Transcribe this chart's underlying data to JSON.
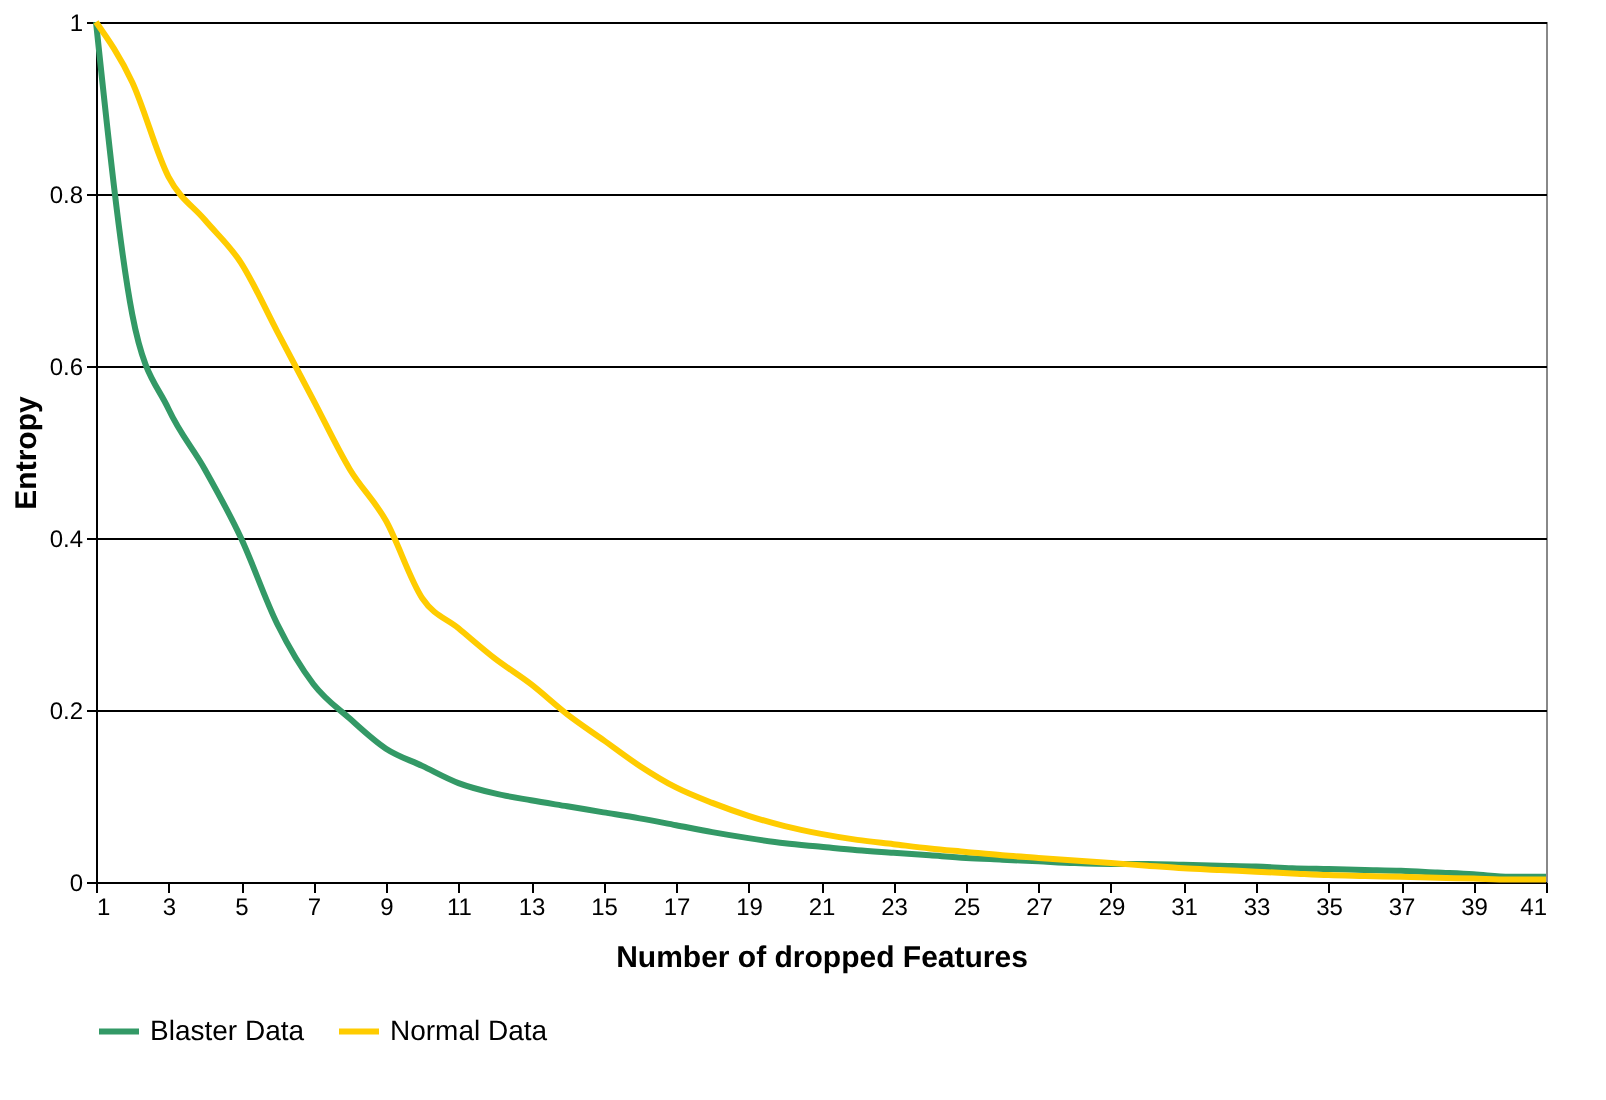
{
  "chart_data": {
    "type": "line",
    "xlabel": "Number of dropped Features",
    "ylabel": "Entropy",
    "x": [
      1,
      2,
      3,
      4,
      5,
      6,
      7,
      8,
      9,
      10,
      11,
      12,
      13,
      14,
      15,
      16,
      17,
      18,
      19,
      20,
      21,
      22,
      23,
      24,
      25,
      26,
      27,
      28,
      29,
      30,
      31,
      32,
      33,
      34,
      35,
      36,
      37,
      38,
      39,
      40,
      41
    ],
    "series": [
      {
        "name": "Blaster Data",
        "color": "#339966",
        "values": [
          1.0,
          0.66,
          0.55,
          0.48,
          0.4,
          0.3,
          0.23,
          0.19,
          0.155,
          0.135,
          0.115,
          0.103,
          0.095,
          0.088,
          0.081,
          0.074,
          0.066,
          0.058,
          0.051,
          0.045,
          0.041,
          0.037,
          0.034,
          0.031,
          0.028,
          0.026,
          0.024,
          0.022,
          0.021,
          0.021,
          0.02,
          0.019,
          0.018,
          0.016,
          0.015,
          0.014,
          0.013,
          0.011,
          0.009,
          0.006,
          0.006
        ]
      },
      {
        "name": "Normal Data",
        "color": "#ffcc00",
        "values": [
          1.0,
          0.93,
          0.82,
          0.77,
          0.72,
          0.64,
          0.56,
          0.48,
          0.42,
          0.33,
          0.295,
          0.26,
          0.23,
          0.195,
          0.165,
          0.135,
          0.11,
          0.092,
          0.077,
          0.065,
          0.056,
          0.049,
          0.044,
          0.039,
          0.035,
          0.031,
          0.028,
          0.025,
          0.022,
          0.019,
          0.016,
          0.014,
          0.012,
          0.01,
          0.008,
          0.007,
          0.006,
          0.005,
          0.004,
          0.003,
          0.003
        ]
      }
    ],
    "xlim": [
      1,
      41
    ],
    "xticks": [
      1,
      3,
      5,
      7,
      9,
      11,
      13,
      15,
      17,
      19,
      21,
      23,
      25,
      27,
      29,
      31,
      33,
      35,
      37,
      39,
      41
    ],
    "ylim": [
      0,
      1
    ],
    "yticks": [
      0,
      0.2,
      0.4,
      0.6,
      0.8,
      1
    ],
    "grid": "y",
    "legend": "bottom",
    "marker": "none",
    "line_style": "solid"
  }
}
